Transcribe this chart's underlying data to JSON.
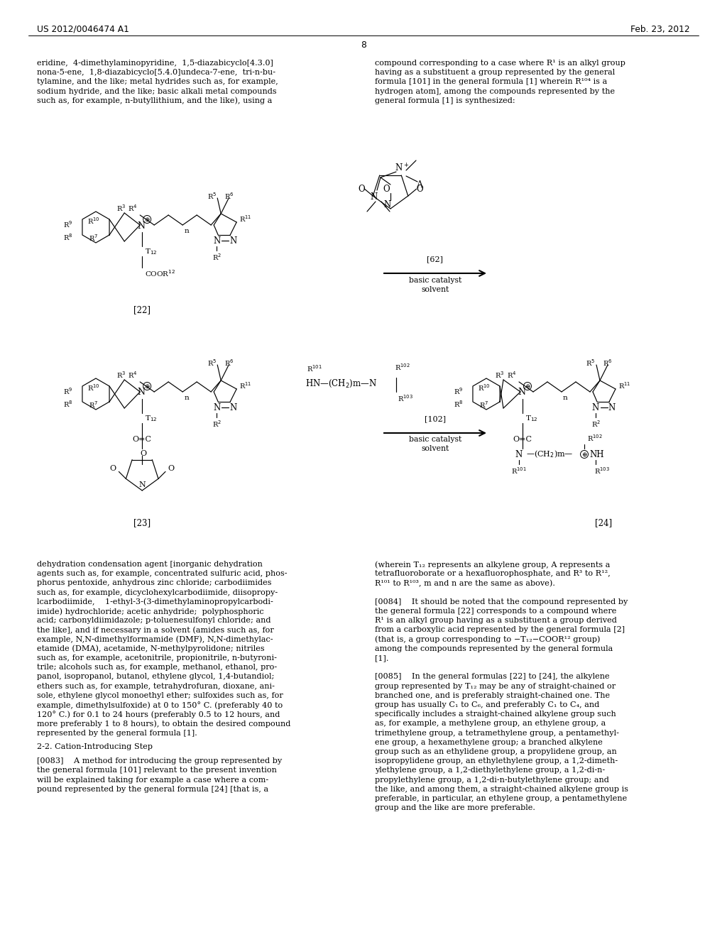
{
  "bg": "#ffffff",
  "hdr_l": "US 2012/0046474 A1",
  "hdr_r": "Feb. 23, 2012",
  "pg": "8",
  "col1_top": [
    "eridine,  4-dimethylaminopyridine,  1,5-diazabicyclo[4.3.0]",
    "nona-5-ene,  1,8-diazabicyclo[5.4.0]undeca-7-ene,  tri-n-bu-",
    "tylamine, and the like; metal hydrides such as, for example,",
    "sodium hydride, and the like; basic alkali metal compounds",
    "such as, for example, n-butyllithium, and the like), using a"
  ],
  "col2_top": [
    "compound corresponding to a case where R¹ is an alkyl group",
    "having as a substituent a group represented by the general",
    "formula [101] in the general formula [1] wherein R¹⁰⁴ is a",
    "hydrogen atom], among the compounds represented by the",
    "general formula [1] is synthesized:"
  ],
  "col1_bot": [
    "dehydration condensation agent [inorganic dehydration",
    "agents such as, for example, concentrated sulfuric acid, phos-",
    "phorus pentoxide, anhydrous zinc chloride; carbodiimides",
    "such as, for example, dicyclohexylcarbodiimide, diisopropy-",
    "lcarbodiimide,    1-ethyl-3-(3-dimethylaminopropylcarbodi-",
    "imide) hydrochloride; acetic anhydride;  polyphosphoric",
    "acid; carbonyldiimidazole; p-toluenesulfonyl chloride; and",
    "the like], and if necessary in a solvent (amides such as, for",
    "example, N,N-dimethylformamide (DMF), N,N-dimethylac-",
    "etamide (DMA), acetamide, N-methylpyrolidone; nitriles",
    "such as, for example, acetonitrile, propionitrile, n-butyroni-",
    "trile; alcohols such as, for example, methanol, ethanol, pro-",
    "panol, isopropanol, butanol, ethylene glycol, 1,4-butandiol;",
    "ethers such as, for example, tetrahydrofuran, dioxane, ani-",
    "sole, ethylene glycol monoethyl ether; sulfoxides such as, for",
    "example, dimethylsulfoxide) at 0 to 150° C. (preferably 40 to",
    "120° C.) for 0.1 to 24 hours (preferably 0.5 to 12 hours, and",
    "more preferably 1 to 8 hours), to obtain the desired compound",
    "represented by the general formula [1]."
  ],
  "sect": "2-2. Cation-Introducing Step",
  "para83": [
    "[0083]    A method for introducing the group represented by",
    "the general formula [101] relevant to the present invention",
    "will be explained taking for example a case where a com-",
    "pound represented by the general formula [24] [that is, a"
  ],
  "col2_bot": [
    "(wherein T₁₂ represents an alkylene group, A represents a",
    "tetrafluoroborate or a hexafluorophosphate, and R³ to R¹²,",
    "R¹⁰¹ to R¹⁰³, m and n are the same as above).",
    "",
    "[0084]    It should be noted that the compound represented by",
    "the general formula [22] corresponds to a compound where",
    "R¹ is an alkyl group having as a substituent a group derived",
    "from a carboxylic acid represented by the general formula [2]",
    "(that is, a group corresponding to −T₁₂−COOR¹² group)",
    "among the compounds represented by the general formula",
    "[1].",
    "",
    "[0085]    In the general formulas [22] to [24], the alkylene",
    "group represented by T₁₂ may be any of straight-chained or",
    "branched one, and is preferably straight-chained one. The",
    "group has usually C₁ to C₆, and preferably C₁ to C₄, and",
    "specifically includes a straight-chained alkylene group such",
    "as, for example, a methylene group, an ethylene group, a",
    "trimethylene group, a tetramethylene group, a pentamethyl-",
    "ene group, a hexamethylene group; a branched alkylene",
    "group such as an ethylidene group, a propylidene group, an",
    "isopropylidene group, an ethylethylene group, a 1,2-dimeth-",
    "ylethylene group, a 1,2-diethylethylene group, a 1,2-di-n-",
    "propylethylene group, a 1,2-di-n-butylethylene group; and",
    "the like, and among them, a straight-chained alkylene group is",
    "preferable, in particular, an ethylene group, a pentamethylene",
    "group and the like are more preferable."
  ]
}
